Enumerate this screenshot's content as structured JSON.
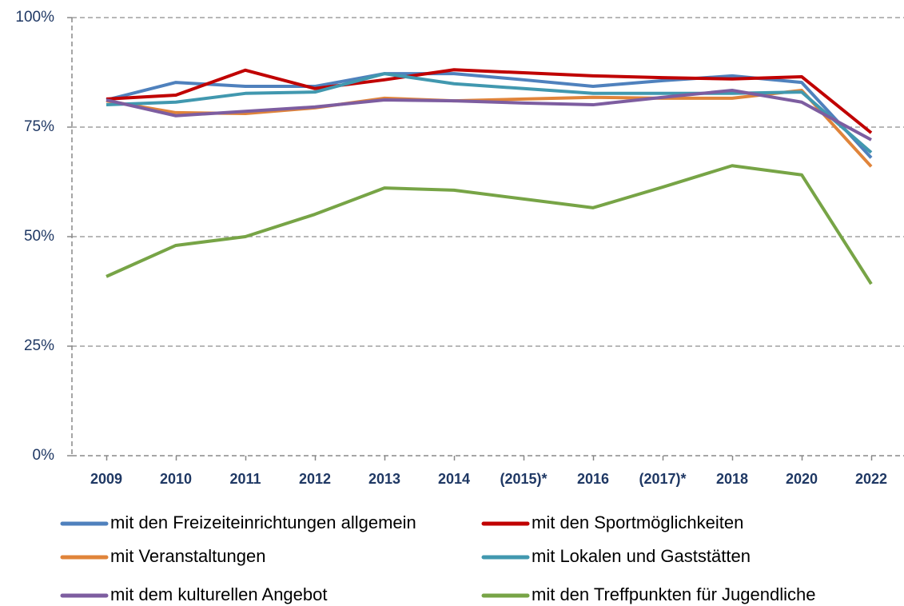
{
  "chart_data": {
    "type": "line",
    "categories": [
      "2009",
      "2010",
      "2011",
      "2012",
      "2013",
      "2014",
      "(2015)*",
      "2016",
      "(2017)*",
      "2018",
      "2020",
      "2022"
    ],
    "series": [
      {
        "name": "mit den Freizeiteinrichtungen allgemein",
        "color": "#4f81bd",
        "values": [
          81.2,
          85.2,
          84.3,
          84.3,
          87.2,
          87.2,
          85.8,
          84.3,
          85.6,
          86.7,
          85.2,
          68
        ]
      },
      {
        "name": "mit den Sportmöglichkeiten",
        "color": "#c00000",
        "values": [
          81.4,
          82.3,
          88,
          83.8,
          85.8,
          88.1,
          87.4,
          86.7,
          86.3,
          86,
          86.5,
          73.7
        ]
      },
      {
        "name": "mit Veranstaltungen",
        "color": "#e0843a",
        "values": [
          81,
          78.3,
          78.1,
          79.4,
          81.6,
          81,
          81.4,
          81.8,
          81.6,
          81.6,
          83.4,
          66
        ]
      },
      {
        "name": "mit Lokalen und Gaststätten",
        "color": "#4198af",
        "values": [
          80.1,
          80.7,
          82.7,
          83,
          87.2,
          84.9,
          83.8,
          82.7,
          82.7,
          82.7,
          83,
          69.2
        ]
      },
      {
        "name": "mit dem kulturellen Angebot",
        "color": "#7d5da0",
        "values": [
          81.2,
          77.6,
          78.6,
          79.6,
          81.2,
          81,
          80.5,
          80.1,
          81.8,
          83.4,
          80.7,
          72.1
        ]
      },
      {
        "name": "mit den Treffpunkten für Jugendliche",
        "color": "#77a446",
        "values": [
          40.9,
          48,
          50,
          55.1,
          61.1,
          60.6,
          58.6,
          56.6,
          61.3,
          66.2,
          64.1,
          39.2
        ]
      }
    ],
    "ylim": [
      0,
      100
    ],
    "yticks": [
      {
        "value": 0,
        "label": "0%"
      },
      {
        "value": 25,
        "label": "25%"
      },
      {
        "value": 50,
        "label": "50%"
      },
      {
        "value": 75,
        "label": "75%"
      },
      {
        "value": 100,
        "label": "100%"
      }
    ],
    "grid": true,
    "legend": "bottom"
  }
}
